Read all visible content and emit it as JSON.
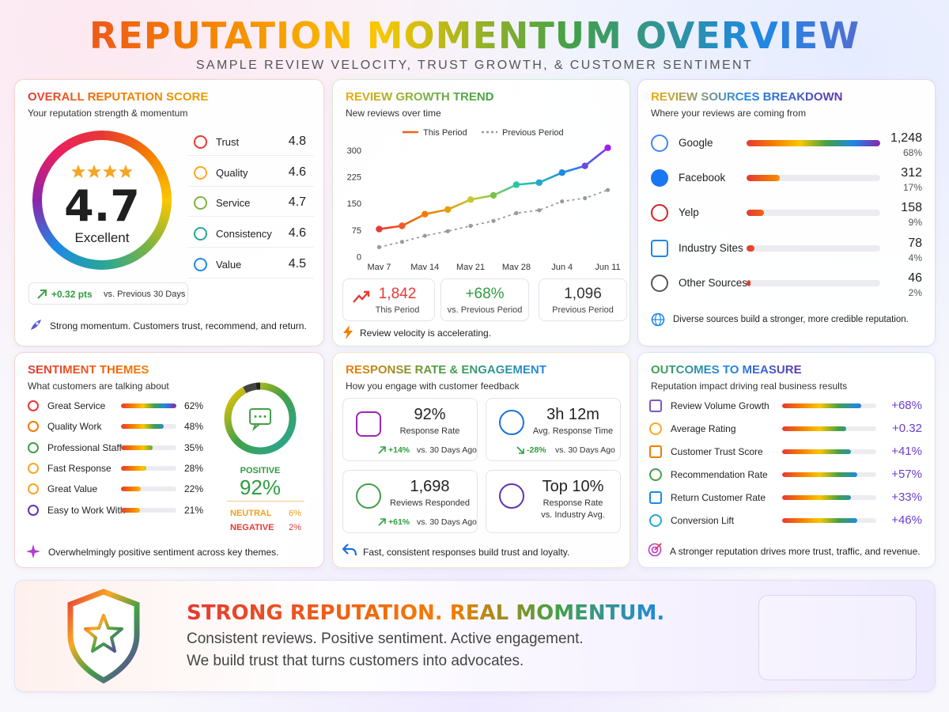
{
  "header": {
    "title": "REPUTATION MOMENTUM OVERVIEW",
    "subtitle": "SAMPLE REVIEW VELOCITY, TRUST GROWTH, & CUSTOMER SENTIMENT"
  },
  "score_panel": {
    "title": "OVERALL REPUTATION SCORE",
    "subtitle": "Your reputation strength & momentum",
    "score": 4.7,
    "rating": "Excellent",
    "factors": [
      {
        "name": "Trust",
        "value": 4.8
      },
      {
        "name": "Quality",
        "value": 4.6
      },
      {
        "name": "Service",
        "value": 4.7
      },
      {
        "name": "Consistency",
        "value": 4.6
      },
      {
        "name": "Value",
        "value": 4.5
      }
    ],
    "change": "+0.32 pts",
    "change_note": "vs. Previous 30 Days",
    "footer": "Strong momentum. Customers trust, recommend, and return."
  },
  "growth_panel": {
    "title": "REVIEW GROWTH TREND",
    "subtitle": "New reviews over time",
    "chart": {
      "type": "line",
      "categories": [
        "May 7",
        null,
        "May 14",
        null,
        "May 21",
        null,
        "May 28",
        null,
        "Jun 4",
        null,
        "Jun 11"
      ],
      "series": [
        {
          "name": "This Period",
          "color": "rainbow",
          "values": [
            78,
            87,
            120,
            133,
            161,
            173,
            203,
            209,
            237,
            256,
            307
          ]
        },
        {
          "name": "Previous Period",
          "color": "#9a9a9a",
          "values": [
            27,
            42,
            59,
            72,
            87,
            101,
            123,
            131,
            156,
            165,
            188
          ]
        }
      ],
      "ylim": [
        -10,
        320
      ],
      "yticks": [
        0,
        75,
        150,
        225,
        300
      ],
      "grid": false
    },
    "stats": [
      {
        "value": "1,842",
        "label": "This Period"
      },
      {
        "value": "+68%",
        "label": "vs. Previous Period"
      },
      {
        "value": "1,096",
        "label": "Previous Period"
      }
    ],
    "footer": "Review velocity is accelerating."
  },
  "sources_panel": {
    "title": "REVIEW SOURCES BREAKDOWN",
    "subtitle": "Where your reviews are coming from",
    "items": [
      {
        "name": "Google",
        "count": "1,248",
        "share": 68,
        "share_label": "68%"
      },
      {
        "name": "Facebook",
        "count": "312",
        "share": 17,
        "share_label": "17%"
      },
      {
        "name": "Yelp",
        "count": "158",
        "share": 9,
        "share_label": "9%"
      },
      {
        "name": "Industry Sites",
        "count": "78",
        "share": 4,
        "share_label": "4%"
      },
      {
        "name": "Other Sources",
        "count": "46",
        "share": 2,
        "share_label": "2%"
      }
    ],
    "footer": "Diverse sources build a stronger, more credible reputation."
  },
  "sentiment_panel": {
    "title": "SENTIMENT THEMES",
    "subtitle": "What customers are talking about",
    "themes": [
      {
        "name": "Great Service",
        "value": 62,
        "label": "62%"
      },
      {
        "name": "Quality Work",
        "value": 48,
        "label": "48%"
      },
      {
        "name": "Professional Staff",
        "value": 35,
        "label": "35%"
      },
      {
        "name": "Fast Response",
        "value": 28,
        "label": "28%"
      },
      {
        "name": "Great Value",
        "value": 22,
        "label": "22%"
      },
      {
        "name": "Easy to Work With",
        "value": 21,
        "label": "21%"
      }
    ],
    "breakdown": [
      {
        "name": "POSITIVE",
        "value": 92,
        "label": "92%"
      },
      {
        "name": "NEUTRAL",
        "value": 6,
        "label": "6%"
      },
      {
        "name": "NEGATIVE",
        "value": 2,
        "label": "2%"
      }
    ],
    "footer": "Overwhelmingly positive sentiment across key themes."
  },
  "response_panel": {
    "title": "RESPONSE RATE & ENGAGEMENT",
    "subtitle": "How you engage with customer feedback",
    "metrics": [
      {
        "value": "92%",
        "label": "Response Rate",
        "change": "+14%",
        "note": "vs. 30 Days Ago"
      },
      {
        "value": "3h 12m",
        "label": "Avg. Response Time",
        "change": "-28%",
        "note": "vs. 30 Days Ago"
      },
      {
        "value": "1,698",
        "label": "Reviews Responded",
        "change": "+61%",
        "note": "vs. 30 Days Ago"
      },
      {
        "value": "Top 10%",
        "label": "Response Rate",
        "note": "vs. Industry Avg."
      }
    ],
    "footer": "Fast, consistent responses build trust and loyalty."
  },
  "outcomes_panel": {
    "title": "OUTCOMES TO MEASURE",
    "subtitle": "Reputation impact driving real business results",
    "items": [
      {
        "name": "Review Volume Growth",
        "value": "+68%"
      },
      {
        "name": "Average Rating",
        "value": "+0.32"
      },
      {
        "name": "Customer Trust Score",
        "value": "+41%"
      },
      {
        "name": "Recommendation Rate",
        "value": "+57%"
      },
      {
        "name": "Return Customer Rate",
        "value": "+33%"
      },
      {
        "name": "Conversion Lift",
        "value": "+46%"
      }
    ],
    "footer": "A stronger reputation drives more trust, traffic, and revenue."
  },
  "banner": {
    "headline": [
      "STRONG REPUTATION.",
      "REAL MOMENTUM."
    ],
    "lines": [
      "Consistent reviews. Positive sentiment. Active engagement.",
      "We build trust that turns customers into advocates."
    ]
  }
}
